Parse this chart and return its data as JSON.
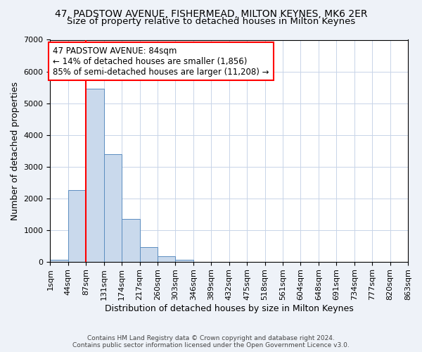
{
  "title_line1": "47, PADSTOW AVENUE, FISHERMEAD, MILTON KEYNES, MK6 2ER",
  "title_line2": "Size of property relative to detached houses in Milton Keynes",
  "xlabel": "Distribution of detached houses by size in Milton Keynes",
  "ylabel": "Number of detached properties",
  "footnote": "Contains HM Land Registry data © Crown copyright and database right 2024.\nContains public sector information licensed under the Open Government Licence v3.0.",
  "bin_labels": [
    "1sqm",
    "44sqm",
    "87sqm",
    "131sqm",
    "174sqm",
    "217sqm",
    "260sqm",
    "303sqm",
    "346sqm",
    "389sqm",
    "432sqm",
    "475sqm",
    "518sqm",
    "561sqm",
    "604sqm",
    "648sqm",
    "691sqm",
    "734sqm",
    "777sqm",
    "820sqm",
    "863sqm"
  ],
  "bar_heights": [
    50,
    2250,
    5450,
    3400,
    1350,
    450,
    160,
    60,
    0,
    0,
    0,
    0,
    0,
    0,
    0,
    0,
    0,
    0,
    0,
    0
  ],
  "bar_color": "#c9d9ec",
  "bar_edge_color": "#5b8dc0",
  "vline_x_index": 2,
  "vline_color": "red",
  "annotation_text": "47 PADSTOW AVENUE: 84sqm\n← 14% of detached houses are smaller (1,856)\n85% of semi-detached houses are larger (11,208) →",
  "annotation_box_color": "white",
  "annotation_edge_color": "red",
  "ylim": [
    0,
    7000
  ],
  "yticks": [
    0,
    1000,
    2000,
    3000,
    4000,
    5000,
    6000,
    7000
  ],
  "background_color": "#eef2f8",
  "plot_background": "white",
  "grid_color": "#c8d4e8",
  "title_fontsize": 10,
  "subtitle_fontsize": 9.5,
  "axis_label_fontsize": 9,
  "tick_fontsize": 8,
  "annotation_fontsize": 8.5
}
